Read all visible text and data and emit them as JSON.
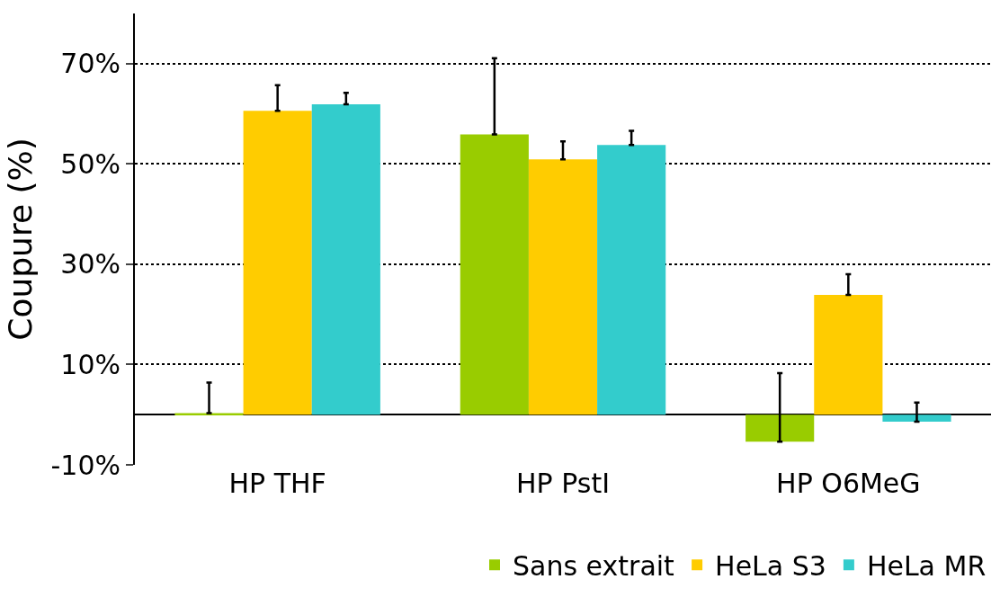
{
  "chart_data": {
    "type": "bar",
    "ylabel": "Coupure (%)",
    "categories": [
      "HP THF",
      "HP PstI",
      "HP O6MeG"
    ],
    "series": [
      {
        "name": "Sans extrait",
        "color": "#99cc00",
        "values": [
          0.3,
          55.9,
          -5.4
        ],
        "errors": [
          [
            0.3,
            6.4
          ],
          [
            55.9,
            71.1
          ],
          [
            -5.4,
            8.3
          ]
        ]
      },
      {
        "name": "HeLa S3",
        "color": "#ffcc00",
        "values": [
          60.6,
          50.9,
          23.9
        ],
        "errors": [
          [
            60.6,
            65.7
          ],
          [
            50.9,
            54.5
          ],
          [
            23.9,
            28.0
          ]
        ]
      },
      {
        "name": "HeLa MR",
        "color": "#33cccc",
        "values": [
          61.9,
          53.8,
          -1.4
        ],
        "errors": [
          [
            61.9,
            64.2
          ],
          [
            53.8,
            56.6
          ],
          [
            -1.4,
            2.4
          ]
        ]
      }
    ],
    "ylim": [
      -10,
      80
    ],
    "yticks": [
      {
        "value": -10,
        "label": "-10%"
      },
      {
        "value": 10,
        "label": "10%"
      },
      {
        "value": 30,
        "label": "30%"
      },
      {
        "value": 50,
        "label": "50%"
      },
      {
        "value": 70,
        "label": "70%"
      }
    ],
    "grid": "y",
    "legend": "bottom"
  }
}
